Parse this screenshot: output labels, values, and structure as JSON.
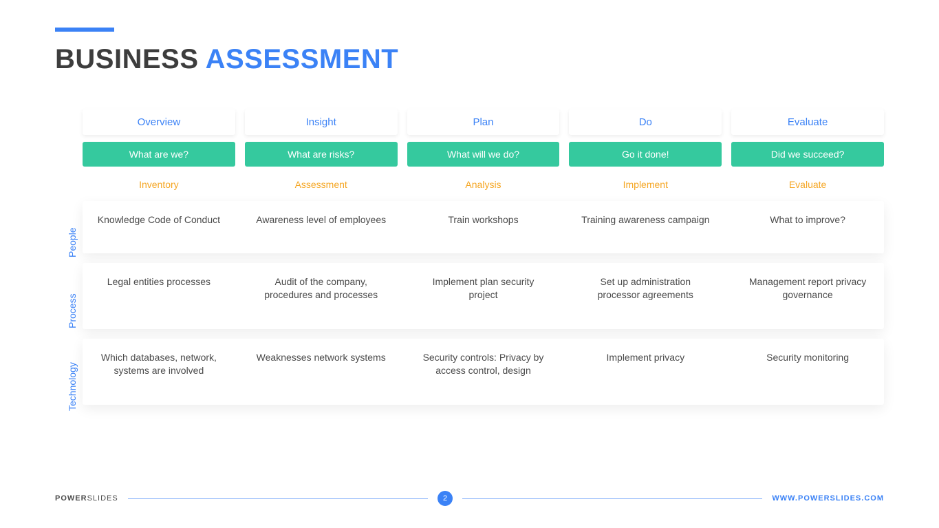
{
  "title": {
    "part1": "BUSINESS ",
    "part2": "ASSESSMENT"
  },
  "colors": {
    "accent": "#3b82f6",
    "green": "#35c99e",
    "orange": "#f5a623",
    "text": "#4a4a4a",
    "title_dark": "#3d3d3d",
    "background": "#ffffff"
  },
  "columns": {
    "headers": [
      "Overview",
      "Insight",
      "Plan",
      "Do",
      "Evaluate"
    ],
    "questions": [
      "What are we?",
      "What are risks?",
      "What will we do?",
      "Go it done!",
      "Did we succeed?"
    ],
    "subheaders": [
      "Inventory",
      "Assessment",
      "Analysis",
      "Implement",
      "Evaluate"
    ]
  },
  "rows": [
    {
      "label": "People",
      "cells": [
        "Knowledge Code of Conduct",
        "Awareness level of employees",
        "Train workshops",
        "Training awareness campaign",
        "What to improve?"
      ]
    },
    {
      "label": "Process",
      "cells": [
        "Legal entities processes",
        "Audit of the company, procedures and processes",
        "Implement plan security project",
        "Set up administration processor agreements",
        "Management report privacy governance"
      ]
    },
    {
      "label": "Technology",
      "cells": [
        "Which databases, network, systems are involved",
        "Weaknesses network systems",
        "Security controls: Privacy by access control, design",
        "Implement privacy",
        "Security monitoring"
      ]
    }
  ],
  "footer": {
    "brand1": "POWER",
    "brand2": "SLIDES",
    "page": "2",
    "url": "WWW.POWERSLIDES.COM"
  }
}
